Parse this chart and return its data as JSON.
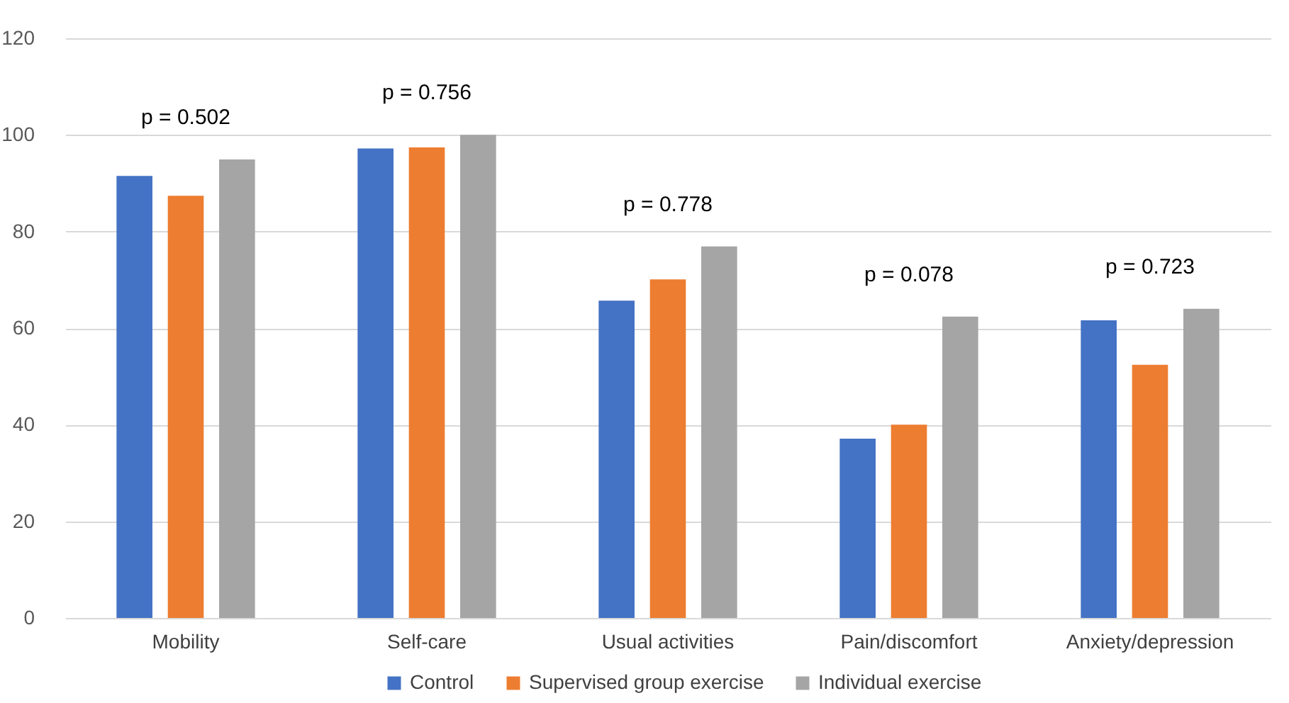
{
  "chart_data": {
    "type": "bar",
    "categories": [
      "Mobility",
      "Self-care",
      "Usual activities",
      "Pain/discomfort",
      "Anxiety/depression"
    ],
    "series": [
      {
        "name": "Control",
        "color": "#4472c4",
        "values": [
          91.5,
          97.2,
          65.7,
          37.1,
          61.6
        ]
      },
      {
        "name": "Supervised group exercise",
        "color": "#ed7d31",
        "values": [
          87.4,
          97.4,
          70.1,
          40,
          52.4
        ]
      },
      {
        "name": "Individual exercise",
        "color": "#a5a5a5",
        "values": [
          94.9,
          100,
          76.9,
          62.4,
          64
        ]
      }
    ],
    "ylim": [
      0,
      120
    ],
    "yticks": [
      0,
      20,
      40,
      60,
      80,
      100,
      120
    ],
    "grid": "y",
    "legend": "bottom",
    "annotations": [
      "p = 0.502",
      "p = 0.756",
      "p = 0.778",
      "p = 0.078",
      "p = 0.723"
    ]
  }
}
